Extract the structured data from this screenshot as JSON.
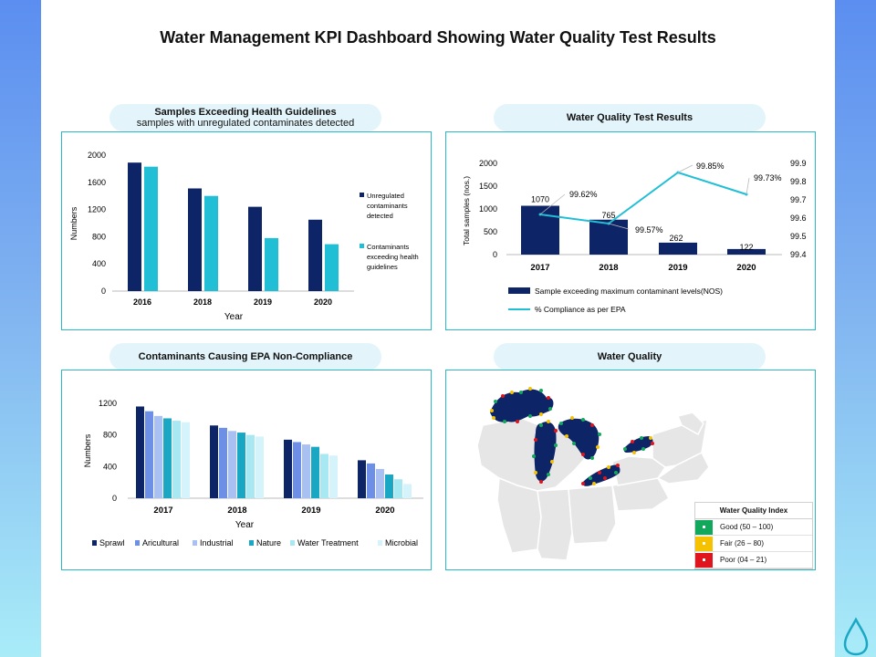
{
  "page_title": "Water Management KPI Dashboard Showing Water Quality Test Results",
  "colors": {
    "navy": "#0d2566",
    "cyan": "#21bfd6",
    "blue": "#3a6fd8",
    "mid_blue": "#6d8fe6",
    "light_blue": "#a9c0f2",
    "teal": "#1aa7c4",
    "pale_cyan": "#a8e8f3",
    "very_pale": "#d4f3fa",
    "good": "#12a85c",
    "fair": "#f6c200",
    "poor": "#e0141d"
  },
  "panels": {
    "health": {
      "title": "Samples Exceeding Health Guidelines",
      "subtitle": "samples with unregulated contaminates detected"
    },
    "tests": {
      "title": "Water Quality Test Results"
    },
    "contaminants": {
      "title": "Contaminants Causing EPA Non-Compliance"
    },
    "quality": {
      "title": "Water Quality"
    }
  },
  "water_quality_index": {
    "title": "Water Quality Index",
    "rows": [
      {
        "label": "Good (50 – 100)",
        "color": "#12a85c"
      },
      {
        "label": "Fair (26 – 80)",
        "color": "#f6c200"
      },
      {
        "label": "Poor (04 – 21)",
        "color": "#e0141d"
      }
    ]
  },
  "chart_data": [
    {
      "type": "bar",
      "title": "Samples Exceeding Health Guidelines",
      "categories": [
        "2016",
        "2018",
        "2019",
        "2020"
      ],
      "series": [
        {
          "name": "Unregulated contaminants detected",
          "values": [
            1890,
            1510,
            1240,
            1050
          ]
        },
        {
          "name": "Contaminants exceeding health guidelines",
          "values": [
            1830,
            1400,
            780,
            690
          ]
        }
      ],
      "xlabel": "Year",
      "ylabel": "Numbers",
      "yticks": [
        "0",
        "400",
        "800",
        "1200",
        "1600",
        "2000"
      ],
      "ylim": [
        0,
        2000
      ]
    },
    {
      "type": "bar+line",
      "title": "Water Quality Test Results",
      "categories": [
        "2017",
        "2018",
        "2019",
        "2020"
      ],
      "bars": {
        "name": "Sample exceeding maximum contaminant levels(NOS)",
        "values": [
          1070,
          765,
          262,
          122
        ],
        "labels": [
          "1070",
          "765",
          "262",
          "122"
        ]
      },
      "line": {
        "name": "% Compliance as per EPA",
        "values": [
          99.62,
          99.57,
          99.85,
          99.73
        ],
        "labels": [
          "99.62%",
          "99.57%",
          "99.85%",
          "99.73%"
        ]
      },
      "ylabel": "Total  samples (nos.)",
      "yticks_left": [
        "0",
        "500",
        "1000",
        "1500",
        "2000"
      ],
      "ylim_left": [
        0,
        2000
      ],
      "yticks_right": [
        "99.4",
        "99.5",
        "99.6",
        "99.7",
        "99.8",
        "99.9"
      ],
      "ylim_right": [
        99.4,
        99.9
      ]
    },
    {
      "type": "bar",
      "title": "Contaminants Causing EPA Non-Compliance",
      "categories": [
        "2017",
        "2018",
        "2019",
        "2020"
      ],
      "series": [
        {
          "name": "Sprawl",
          "values": [
            1160,
            920,
            740,
            480
          ]
        },
        {
          "name": "Aricultural",
          "values": [
            1100,
            890,
            710,
            440
          ]
        },
        {
          "name": "Industrial",
          "values": [
            1040,
            850,
            680,
            370
          ]
        },
        {
          "name": "Nature",
          "values": [
            1010,
            830,
            650,
            300
          ]
        },
        {
          "name": "Water Treatment",
          "values": [
            980,
            800,
            560,
            240
          ]
        },
        {
          "name": "Microbial",
          "values": [
            960,
            780,
            540,
            180
          ]
        }
      ],
      "xlabel": "Year",
      "ylabel": "Numbers",
      "yticks": [
        "0",
        "400",
        "800",
        "1200"
      ],
      "ylim": [
        0,
        1200
      ]
    }
  ]
}
